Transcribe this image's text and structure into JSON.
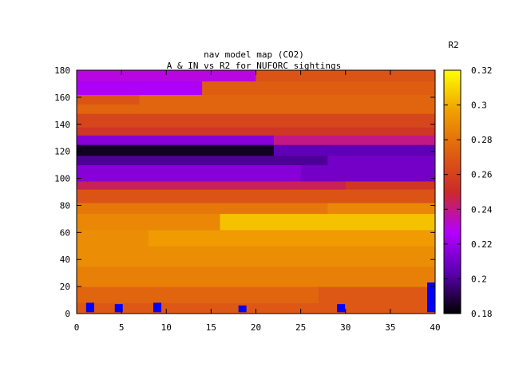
{
  "chart_data": {
    "type": "heatmap",
    "title": "nav model map (CO2)",
    "subtitle": "A & IN vs R2 for NUFORC sightings",
    "xlabel": "",
    "ylabel": "",
    "xlim": [
      0,
      40
    ],
    "ylim": [
      0,
      180
    ],
    "x_ticks": [
      "0",
      "5",
      "10",
      "15",
      "20",
      "25",
      "30",
      "35",
      "40"
    ],
    "y_ticks": [
      "0",
      "20",
      "40",
      "60",
      "80",
      "100",
      "120",
      "140",
      "160",
      "180"
    ],
    "colorbar": {
      "label": "R2",
      "range": [
        0.18,
        0.32
      ],
      "ticks": [
        "0.18",
        "0.2",
        "0.22",
        "0.24",
        "0.26",
        "0.28",
        "0.3",
        "0.32"
      ],
      "palette": [
        "#000000",
        "#5a00b0",
        "#b400ff",
        "#cc2a2a",
        "#e06010",
        "#f0a000",
        "#ffff00"
      ]
    },
    "bands": [
      {
        "y0": 0,
        "y1": 8,
        "value": 0.27,
        "x_split": null
      },
      {
        "y0": 8,
        "y1": 20,
        "value": 0.275,
        "x_split": 27,
        "value_right": 0.27
      },
      {
        "y0": 20,
        "y1": 35,
        "value": 0.285,
        "x_split": null
      },
      {
        "y0": 35,
        "y1": 50,
        "value": 0.29,
        "x_split": null
      },
      {
        "y0": 50,
        "y1": 62,
        "value": 0.29,
        "x_split": 8,
        "value_right": 0.295
      },
      {
        "y0": 62,
        "y1": 74,
        "value": 0.288,
        "x_split": 16,
        "value_right": 0.305
      },
      {
        "y0": 74,
        "y1": 82,
        "value": 0.282,
        "x_split": 28,
        "value_right": 0.288
      },
      {
        "y0": 82,
        "y1": 92,
        "value": 0.268,
        "x_split": null
      },
      {
        "y0": 92,
        "y1": 98,
        "value": 0.245,
        "x_split": 30,
        "value_right": 0.255
      },
      {
        "y0": 98,
        "y1": 110,
        "value": 0.215,
        "x_split": 25,
        "value_right": 0.21
      },
      {
        "y0": 110,
        "y1": 117,
        "value": 0.2,
        "x_split": 28,
        "value_right": 0.21
      },
      {
        "y0": 117,
        "y1": 125,
        "value": 0.185,
        "x_split": 22,
        "value_right": 0.205
      },
      {
        "y0": 125,
        "y1": 132,
        "value": 0.215,
        "x_split": 22,
        "value_right": 0.24
      },
      {
        "y0": 132,
        "y1": 138,
        "value": 0.255,
        "x_split": null
      },
      {
        "y0": 138,
        "y1": 148,
        "value": 0.262,
        "x_split": null
      },
      {
        "y0": 148,
        "y1": 155,
        "value": 0.275,
        "x_split": null
      },
      {
        "y0": 155,
        "y1": 162,
        "value": 0.268,
        "x_split": 7,
        "value_right": 0.275
      },
      {
        "y0": 162,
        "y1": 172,
        "value": 0.225,
        "x_split": 14,
        "value_right": 0.272
      },
      {
        "y0": 172,
        "y1": 180,
        "value": 0.23,
        "x_split": 20,
        "value_right": 0.268
      }
    ],
    "markers": [
      {
        "x": 1.5,
        "y0": 1,
        "y1": 8
      },
      {
        "x": 4.7,
        "y0": 1,
        "y1": 7
      },
      {
        "x": 9.0,
        "y0": 1,
        "y1": 8
      },
      {
        "x": 18.5,
        "y0": 1,
        "y1": 6
      },
      {
        "x": 29.5,
        "y0": 1,
        "y1": 7
      },
      {
        "x": 39.6,
        "y0": 1,
        "y1": 23
      }
    ],
    "marker_color": "#0000ff"
  }
}
